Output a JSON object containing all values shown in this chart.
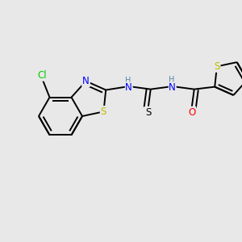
{
  "background_color": "#e8e8e8",
  "line_color": "#000000",
  "lw": 1.4,
  "colors": {
    "C": "#000000",
    "N": "#0000ff",
    "S": "#bbbb00",
    "O": "#ff0000",
    "Cl": "#00cc00",
    "H_label": "#5588aa"
  },
  "figsize": [
    3.0,
    3.0
  ],
  "dpi": 100
}
